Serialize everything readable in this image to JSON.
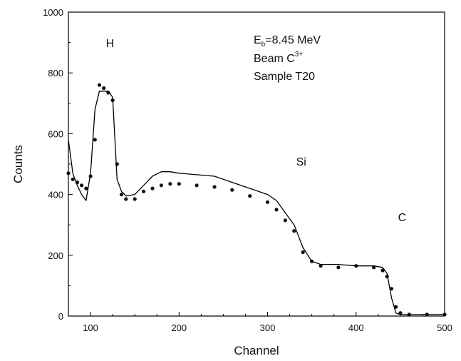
{
  "chart_data": {
    "type": "scatter",
    "xlabel": "Channel",
    "ylabel": "Counts",
    "xlim": [
      75,
      500
    ],
    "ylim": [
      0,
      1000
    ],
    "x_ticks": [
      100,
      200,
      300,
      400,
      500
    ],
    "y_ticks": [
      0,
      200,
      400,
      600,
      800,
      1000
    ],
    "grid": false,
    "annotations": [
      {
        "text": "H",
        "x": 122,
        "y": 885
      },
      {
        "text": "Si",
        "x": 338,
        "y": 495
      },
      {
        "text": "C",
        "x": 452,
        "y": 312
      }
    ],
    "info_box": {
      "line1_prefix": "E",
      "line1_sub": "b",
      "line1_rest": "=8.45 MeV",
      "line2_prefix": "Beam C",
      "line2_sup": "3+",
      "line3": "Sample T20"
    },
    "series": [
      {
        "kind": "scatter",
        "x": [
          75,
          80,
          85,
          90,
          95,
          100,
          105,
          110,
          115,
          120,
          125,
          130,
          135,
          140,
          150,
          160,
          170,
          180,
          190,
          200,
          220,
          240,
          260,
          280,
          300,
          310,
          320,
          330,
          340,
          350,
          360,
          380,
          400,
          420,
          430,
          435,
          440,
          445,
          450,
          460,
          480,
          500
        ],
        "y": [
          470,
          450,
          440,
          430,
          420,
          460,
          580,
          760,
          750,
          735,
          710,
          500,
          400,
          385,
          385,
          410,
          420,
          430,
          435,
          435,
          430,
          425,
          415,
          395,
          375,
          350,
          315,
          280,
          210,
          180,
          165,
          160,
          165,
          160,
          150,
          130,
          90,
          30,
          10,
          5,
          5,
          5
        ]
      },
      {
        "kind": "line",
        "x": [
          75,
          80,
          85,
          90,
          95,
          100,
          105,
          110,
          115,
          120,
          125,
          130,
          135,
          140,
          150,
          160,
          170,
          180,
          190,
          200,
          220,
          240,
          260,
          280,
          300,
          310,
          320,
          330,
          340,
          350,
          360,
          380,
          400,
          420,
          430,
          435,
          440,
          445,
          450,
          460,
          480,
          500
        ],
        "y": [
          580,
          470,
          430,
          400,
          380,
          470,
          680,
          740,
          740,
          740,
          720,
          450,
          410,
          395,
          400,
          430,
          460,
          475,
          475,
          470,
          465,
          460,
          440,
          420,
          400,
          380,
          340,
          300,
          225,
          180,
          170,
          170,
          165,
          165,
          160,
          140,
          60,
          10,
          5,
          5,
          5,
          5
        ]
      }
    ]
  }
}
